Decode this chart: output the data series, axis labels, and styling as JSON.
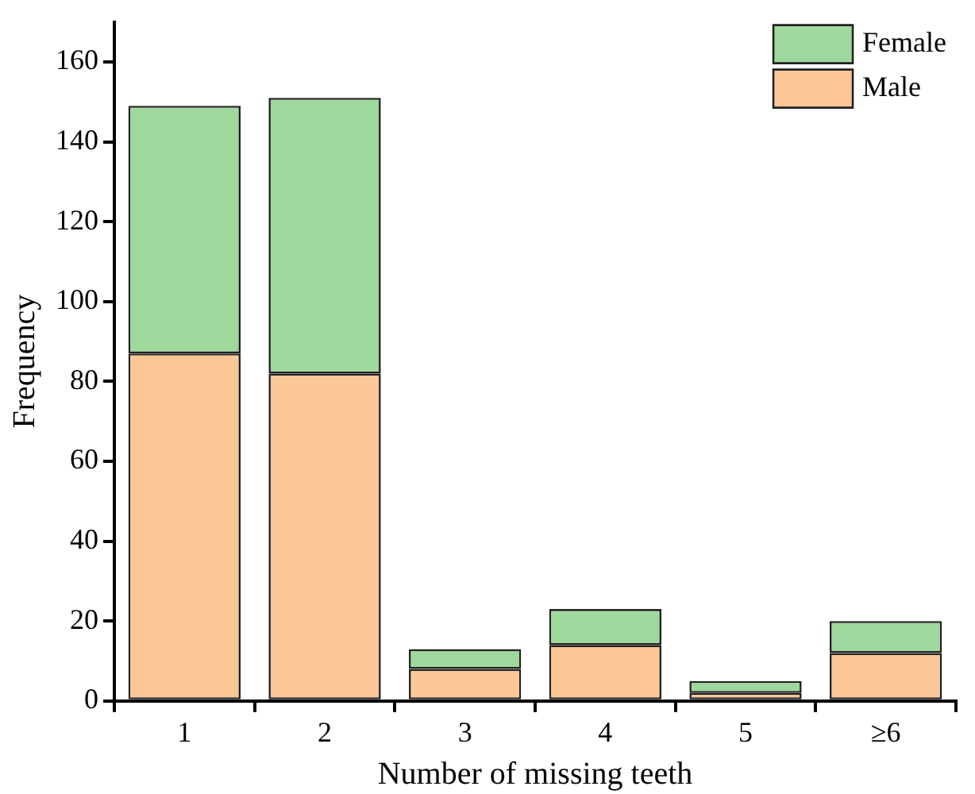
{
  "chart_data": {
    "type": "bar",
    "xlabel": "Number of missing teeth",
    "ylabel": "Frequency",
    "categories": [
      "1",
      "2",
      "3",
      "4",
      "5",
      "≥6"
    ],
    "stacked": true,
    "ylim": [
      0,
      170
    ],
    "yticks": [
      0,
      20,
      40,
      60,
      80,
      100,
      120,
      140,
      160
    ],
    "grid": false,
    "legend": "top right",
    "series": [
      {
        "name": "Male",
        "color": "#fcc797",
        "values": [
          87,
          82,
          8,
          14,
          2,
          12
        ]
      },
      {
        "name": "Female",
        "color": "#9fd89c",
        "values": [
          62,
          69,
          5,
          9,
          3,
          8
        ]
      }
    ]
  }
}
